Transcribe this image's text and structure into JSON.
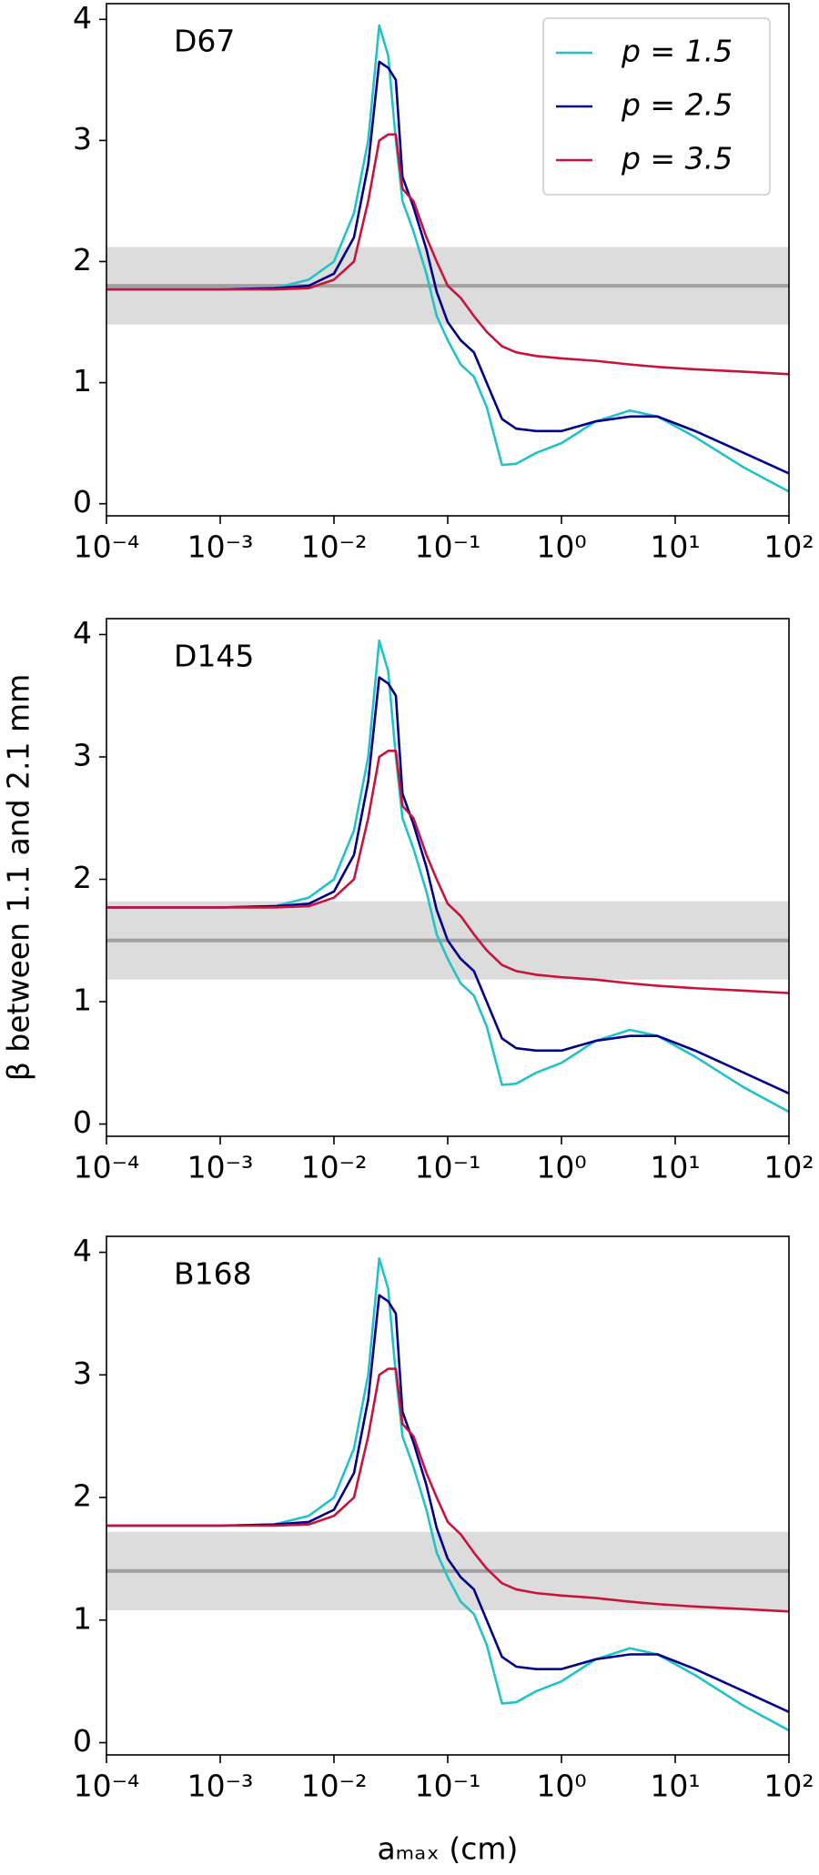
{
  "chart_data": [
    {
      "type": "line",
      "label": "D67",
      "xscale": "log",
      "x": [
        0.0001,
        0.001,
        0.003,
        0.006,
        0.01,
        0.015,
        0.02,
        0.025,
        0.03,
        0.035,
        0.04,
        0.05,
        0.065,
        0.08,
        0.1,
        0.13,
        0.17,
        0.22,
        0.3,
        0.4,
        0.6,
        1,
        2,
        4,
        7,
        15,
        40,
        100
      ],
      "series": [
        {
          "name": "p = 1.5",
          "color": "#22c3c8",
          "values": [
            1.77,
            1.77,
            1.78,
            1.85,
            2.0,
            2.4,
            3.0,
            3.95,
            3.7,
            3.0,
            2.5,
            2.25,
            1.9,
            1.55,
            1.35,
            1.15,
            1.05,
            0.8,
            0.32,
            0.33,
            0.42,
            0.5,
            0.68,
            0.77,
            0.72,
            0.55,
            0.3,
            0.1
          ]
        },
        {
          "name": "p = 2.5",
          "color": "#00008b",
          "values": [
            1.77,
            1.77,
            1.78,
            1.8,
            1.9,
            2.2,
            2.8,
            3.65,
            3.6,
            3.5,
            2.7,
            2.45,
            2.1,
            1.75,
            1.5,
            1.35,
            1.25,
            1.0,
            0.7,
            0.62,
            0.6,
            0.6,
            0.68,
            0.72,
            0.72,
            0.6,
            0.42,
            0.25
          ]
        },
        {
          "name": "p = 3.5",
          "color": "#c8143c",
          "values": [
            1.77,
            1.77,
            1.77,
            1.78,
            1.85,
            2.0,
            2.5,
            3.0,
            3.05,
            3.05,
            2.6,
            2.5,
            2.2,
            2.0,
            1.8,
            1.7,
            1.55,
            1.42,
            1.3,
            1.25,
            1.22,
            1.2,
            1.18,
            1.15,
            1.13,
            1.11,
            1.09,
            1.07
          ]
        }
      ],
      "reference": 1.8,
      "band": [
        1.48,
        2.12
      ],
      "band_color": "#dcdcdc",
      "reference_color": "#a0a0a0",
      "legend": "upper right",
      "xlim": [
        0.0001,
        100
      ],
      "ylim": [
        -0.1,
        4.13
      ],
      "yticks": [
        0,
        1,
        2,
        3,
        4
      ],
      "xticks": [
        {
          "value": 0.0001,
          "label": "10⁻⁴"
        },
        {
          "value": 0.001,
          "label": "10⁻³"
        },
        {
          "value": 0.01,
          "label": "10⁻²"
        },
        {
          "value": 0.1,
          "label": "10⁻¹"
        },
        {
          "value": 1,
          "label": "10⁰"
        },
        {
          "value": 10,
          "label": "10¹"
        },
        {
          "value": 100,
          "label": "10²"
        }
      ]
    },
    {
      "type": "line",
      "label": "D145",
      "xscale": "log",
      "ylabel": "β between 1.1 and 2.1 mm",
      "x": [
        0.0001,
        0.001,
        0.003,
        0.006,
        0.01,
        0.015,
        0.02,
        0.025,
        0.03,
        0.035,
        0.04,
        0.05,
        0.065,
        0.08,
        0.1,
        0.13,
        0.17,
        0.22,
        0.3,
        0.4,
        0.6,
        1,
        2,
        4,
        7,
        15,
        40,
        100
      ],
      "series": [
        {
          "name": "p = 1.5",
          "color": "#22c3c8",
          "values": [
            1.77,
            1.77,
            1.78,
            1.85,
            2.0,
            2.4,
            3.0,
            3.95,
            3.7,
            3.0,
            2.5,
            2.25,
            1.9,
            1.55,
            1.35,
            1.15,
            1.05,
            0.8,
            0.32,
            0.33,
            0.42,
            0.5,
            0.68,
            0.77,
            0.72,
            0.55,
            0.3,
            0.1
          ]
        },
        {
          "name": "p = 2.5",
          "color": "#00008b",
          "values": [
            1.77,
            1.77,
            1.78,
            1.8,
            1.9,
            2.2,
            2.8,
            3.65,
            3.6,
            3.5,
            2.7,
            2.45,
            2.1,
            1.75,
            1.5,
            1.35,
            1.25,
            1.0,
            0.7,
            0.62,
            0.6,
            0.6,
            0.68,
            0.72,
            0.72,
            0.6,
            0.42,
            0.25
          ]
        },
        {
          "name": "p = 3.5",
          "color": "#c8143c",
          "values": [
            1.77,
            1.77,
            1.77,
            1.78,
            1.85,
            2.0,
            2.5,
            3.0,
            3.05,
            3.05,
            2.6,
            2.5,
            2.2,
            2.0,
            1.8,
            1.7,
            1.55,
            1.42,
            1.3,
            1.25,
            1.22,
            1.2,
            1.18,
            1.15,
            1.13,
            1.11,
            1.09,
            1.07
          ]
        }
      ],
      "reference": 1.5,
      "band": [
        1.18,
        1.82
      ],
      "band_color": "#dcdcdc",
      "reference_color": "#a0a0a0",
      "xlim": [
        0.0001,
        100
      ],
      "ylim": [
        -0.1,
        4.13
      ],
      "yticks": [
        0,
        1,
        2,
        3,
        4
      ],
      "xticks": [
        {
          "value": 0.0001,
          "label": "10⁻⁴"
        },
        {
          "value": 0.001,
          "label": "10⁻³"
        },
        {
          "value": 0.01,
          "label": "10⁻²"
        },
        {
          "value": 0.1,
          "label": "10⁻¹"
        },
        {
          "value": 1,
          "label": "10⁰"
        },
        {
          "value": 10,
          "label": "10¹"
        },
        {
          "value": 100,
          "label": "10²"
        }
      ]
    },
    {
      "type": "line",
      "label": "B168",
      "xscale": "log",
      "xlabel": "aₘₐₓ (cm)",
      "x": [
        0.0001,
        0.001,
        0.003,
        0.006,
        0.01,
        0.015,
        0.02,
        0.025,
        0.03,
        0.035,
        0.04,
        0.05,
        0.065,
        0.08,
        0.1,
        0.13,
        0.17,
        0.22,
        0.3,
        0.4,
        0.6,
        1,
        2,
        4,
        7,
        15,
        40,
        100
      ],
      "series": [
        {
          "name": "p = 1.5",
          "color": "#22c3c8",
          "values": [
            1.77,
            1.77,
            1.78,
            1.85,
            2.0,
            2.4,
            3.0,
            3.95,
            3.7,
            3.0,
            2.5,
            2.25,
            1.9,
            1.55,
            1.35,
            1.15,
            1.05,
            0.8,
            0.32,
            0.33,
            0.42,
            0.5,
            0.68,
            0.77,
            0.72,
            0.55,
            0.3,
            0.1
          ]
        },
        {
          "name": "p = 2.5",
          "color": "#00008b",
          "values": [
            1.77,
            1.77,
            1.78,
            1.8,
            1.9,
            2.2,
            2.8,
            3.65,
            3.6,
            3.5,
            2.7,
            2.45,
            2.1,
            1.75,
            1.5,
            1.35,
            1.25,
            1.0,
            0.7,
            0.62,
            0.6,
            0.6,
            0.68,
            0.72,
            0.72,
            0.6,
            0.42,
            0.25
          ]
        },
        {
          "name": "p = 3.5",
          "color": "#c8143c",
          "values": [
            1.77,
            1.77,
            1.77,
            1.78,
            1.85,
            2.0,
            2.5,
            3.0,
            3.05,
            3.05,
            2.6,
            2.5,
            2.2,
            2.0,
            1.8,
            1.7,
            1.55,
            1.42,
            1.3,
            1.25,
            1.22,
            1.2,
            1.18,
            1.15,
            1.13,
            1.11,
            1.09,
            1.07
          ]
        }
      ],
      "reference": 1.4,
      "band": [
        1.08,
        1.72
      ],
      "band_color": "#dcdcdc",
      "reference_color": "#a0a0a0",
      "xlim": [
        0.0001,
        100
      ],
      "ylim": [
        -0.1,
        4.13
      ],
      "yticks": [
        0,
        1,
        2,
        3,
        4
      ],
      "xticks": [
        {
          "value": 0.0001,
          "label": "10⁻⁴"
        },
        {
          "value": 0.001,
          "label": "10⁻³"
        },
        {
          "value": 0.01,
          "label": "10⁻²"
        },
        {
          "value": 0.1,
          "label": "10⁻¹"
        },
        {
          "value": 1,
          "label": "10⁰"
        },
        {
          "value": 10,
          "label": "10¹"
        },
        {
          "value": 100,
          "label": "10²"
        }
      ]
    }
  ]
}
